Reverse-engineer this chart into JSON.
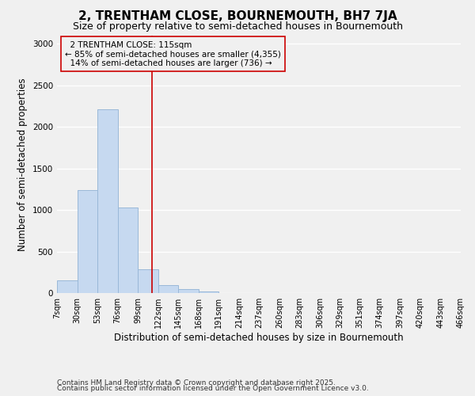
{
  "title": "2, TRENTHAM CLOSE, BOURNEMOUTH, BH7 7JA",
  "subtitle": "Size of property relative to semi-detached houses in Bournemouth",
  "xlabel": "Distribution of semi-detached houses by size in Bournemouth",
  "ylabel": "Number of semi-detached properties",
  "bar_left_edges": [
    7,
    30,
    53,
    76,
    99,
    122,
    145,
    168,
    191,
    214,
    237,
    260,
    283,
    306,
    329,
    351,
    374,
    397,
    420,
    443
  ],
  "bar_heights": [
    150,
    1240,
    2210,
    1030,
    285,
    100,
    50,
    20,
    0,
    0,
    0,
    0,
    0,
    0,
    0,
    0,
    0,
    0,
    0,
    0
  ],
  "bin_width": 23,
  "bar_color": "#c6d9f0",
  "bar_edgecolor": "#9ab8d8",
  "property_size": 115,
  "property_line_color": "#cc0000",
  "annotation_title": "2 TRENTHAM CLOSE: 115sqm",
  "annotation_line1": "← 85% of semi-detached houses are smaller (4,355)",
  "annotation_line2": "14% of semi-detached houses are larger (736) →",
  "annotation_box_edgecolor": "#cc0000",
  "tick_labels": [
    "7sqm",
    "30sqm",
    "53sqm",
    "76sqm",
    "99sqm",
    "122sqm",
    "145sqm",
    "168sqm",
    "191sqm",
    "214sqm",
    "237sqm",
    "260sqm",
    "283sqm",
    "306sqm",
    "329sqm",
    "351sqm",
    "374sqm",
    "397sqm",
    "420sqm",
    "443sqm",
    "466sqm"
  ],
  "ylim": [
    0,
    3100
  ],
  "footer1": "Contains HM Land Registry data © Crown copyright and database right 2025.",
  "footer2": "Contains public sector information licensed under the Open Government Licence v3.0.",
  "background_color": "#f0f0f0",
  "grid_color": "#ffffff",
  "title_fontsize": 11,
  "subtitle_fontsize": 9,
  "axis_label_fontsize": 8.5,
  "tick_fontsize": 7,
  "footer_fontsize": 6.5,
  "annotation_fontsize": 7.5
}
